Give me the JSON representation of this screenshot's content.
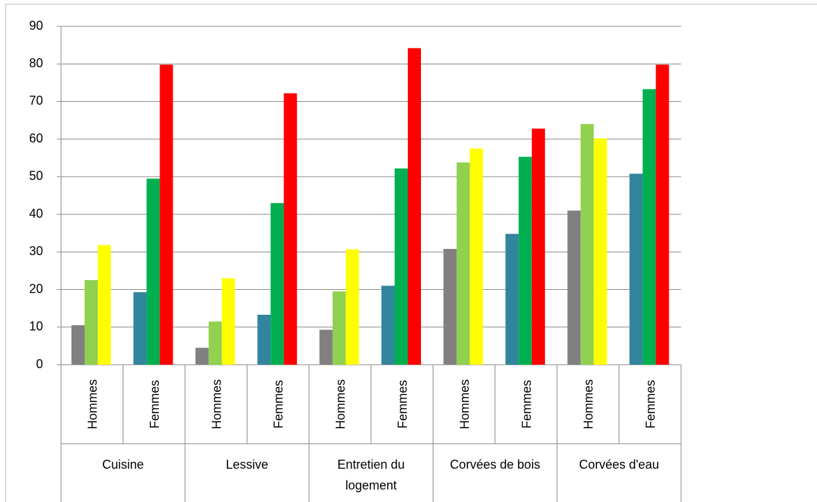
{
  "chart_data": {
    "type": "bar",
    "categories": [
      "Hommes",
      "Femmes",
      "Hommes",
      "Femmes",
      "Hommes",
      "Femmes",
      "Hommes",
      "Femmes",
      "Hommes",
      "Femmes"
    ],
    "groups": [
      "Cuisine",
      "Lessive",
      "Entretien du logement",
      "Corvées de bois",
      "Corvées d'eau"
    ],
    "series": [
      {
        "colors": [
          "#808080",
          "#31859c",
          "#808080",
          "#31859c",
          "#808080",
          "#31859c",
          "#808080",
          "#31859c",
          "#808080",
          "#31859c"
        ],
        "values": [
          10.5,
          19.3,
          4.5,
          13.3,
          9.3,
          21,
          30.8,
          34.8,
          41,
          50.8
        ]
      },
      {
        "colors": [
          "#92d050",
          "#00b050",
          "#92d050",
          "#00b050",
          "#92d050",
          "#00b050",
          "#92d050",
          "#00b050",
          "#92d050",
          "#00b050"
        ],
        "values": [
          22.5,
          49.5,
          11.5,
          43,
          19.5,
          52.2,
          53.8,
          55.3,
          64,
          73.3
        ]
      },
      {
        "colors": [
          "#ffff00",
          "#ff0000",
          "#ffff00",
          "#ff0000",
          "#ffff00",
          "#ff0000",
          "#ffff00",
          "#ff0000",
          "#ffff00",
          "#ff0000"
        ],
        "values": [
          31.8,
          79.8,
          23,
          72.2,
          30.7,
          84.2,
          57.5,
          62.8,
          60.2,
          79.8
        ]
      }
    ],
    "ylim": [
      0,
      90
    ],
    "yticks": [
      0,
      10,
      20,
      30,
      40,
      50,
      60,
      70,
      80,
      90
    ],
    "grid": true
  }
}
